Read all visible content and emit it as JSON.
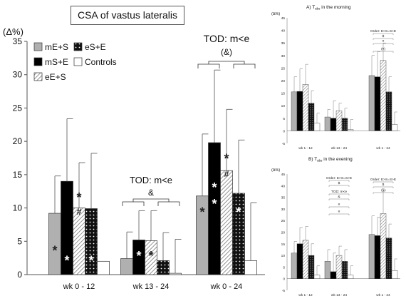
{
  "chart_data": [
    {
      "type": "bar",
      "title": "CSA of vastus lateralis",
      "ylabel": "(Δ%)",
      "ylim": [
        0,
        35
      ],
      "yticks": [
        0,
        5,
        10,
        15,
        20,
        25,
        30,
        35
      ],
      "categories": [
        "wk 0 - 12",
        "wk 13 - 24",
        "wk 0 - 24"
      ],
      "series": [
        {
          "name": "mE+S",
          "color": "#b0b0b0",
          "pattern": "solid",
          "values": [
            9.2,
            2.4,
            11.8
          ],
          "errors": [
            5.6,
            4.0,
            9.3
          ]
        },
        {
          "name": "eS+E",
          "color": "#111111",
          "pattern": "dots",
          "values": [
            9.9,
            2.1,
            12.2
          ],
          "errors": [
            8.3,
            4.2,
            8.0
          ]
        },
        {
          "name": "mS+E",
          "color": "#000000",
          "pattern": "solid",
          "values": [
            14.0,
            5.2,
            19.8
          ],
          "errors": [
            9.4,
            4.4,
            10.9
          ]
        },
        {
          "name": "eE+S",
          "color": "#ffffff",
          "pattern": "diagonal",
          "values": [
            10.0,
            5.1,
            15.6
          ],
          "errors": [
            6.8,
            4.5,
            9.2
          ]
        },
        {
          "name": "Controls",
          "color": "#ffffff",
          "pattern": "solid",
          "values": [
            2.0,
            0.2,
            2.1
          ],
          "errors": [
            0,
            5.1,
            8.7
          ]
        }
      ],
      "legend_layout": [
        [
          "mE+S",
          "eS+E"
        ],
        [
          "mS+E",
          "Controls"
        ],
        [
          "eE+S"
        ]
      ],
      "legend": "top-left",
      "markers": [
        {
          "category": 0,
          "series": 0,
          "symbol": "*",
          "at": 4.0
        },
        {
          "category": 0,
          "series": 1,
          "symbol": "*",
          "at": 2.5
        },
        {
          "category": 0,
          "series": 3,
          "symbol": "*",
          "at": 12.0
        },
        {
          "category": 0,
          "series": 3,
          "symbol": "#",
          "at": 9.5
        },
        {
          "category": 0,
          "series": 2,
          "symbol": "*",
          "at": 2.5
        },
        {
          "category": 1,
          "series": 3,
          "symbol": "*",
          "at": 3.2
        },
        {
          "category": 1,
          "series": 2,
          "symbol": "*",
          "at": 3.2
        },
        {
          "category": 2,
          "series": 0,
          "symbol": "*",
          "at": 9.8
        },
        {
          "category": 2,
          "series": 1,
          "symbol": "*",
          "at": 9.8
        },
        {
          "category": 2,
          "series": 3,
          "symbol": "*",
          "at": 17.8
        },
        {
          "category": 2,
          "series": 3,
          "symbol": "#",
          "at": 15.2
        },
        {
          "category": 2,
          "series": 2,
          "symbol": "*",
          "at": 13.5
        },
        {
          "category": 2,
          "series": 2,
          "symbol": "*",
          "at": 11.0
        }
      ],
      "annotations": [
        {
          "category": 1,
          "text": "TOD: m<e",
          "symbol": "&"
        },
        {
          "category": 2,
          "text": "TOD: m<e",
          "symbol": "(&)"
        }
      ]
    },
    {
      "type": "bar",
      "title": "A) T",
      "title_subscript": "abs",
      "title_suffix": " in the morning",
      "ylabel": "(Δ%)",
      "ylim": [
        -5,
        45
      ],
      "yticks": [
        -5,
        0,
        5,
        10,
        15,
        20,
        25,
        30,
        35,
        40,
        45
      ],
      "categories": [
        "wk 1 - 12",
        "wk 13 - 24",
        "wk 1 - 24"
      ],
      "values": [
        [
          15.5,
          15.7,
          18.5,
          11.0,
          3.0
        ],
        [
          5.5,
          5.0,
          8.0,
          5.0,
          0.5
        ],
        [
          22.0,
          21.5,
          28.0,
          15.5,
          2.5
        ]
      ],
      "errors": [
        [
          6,
          9,
          8,
          5,
          4
        ],
        [
          3,
          7,
          3,
          4,
          4
        ],
        [
          8,
          10,
          7,
          6,
          5
        ]
      ],
      "annotations": [
        {
          "category": 2,
          "text": "Order: E>S=S>E"
        },
        {
          "category": 2,
          "text": "$"
        },
        {
          "category": 2,
          "text": "#"
        },
        {
          "category": 2,
          "text": "(#)"
        }
      ]
    },
    {
      "type": "bar",
      "title": "B) T",
      "title_subscript": "abs",
      "title_suffix": " in the evening",
      "ylabel": "(Δ%)",
      "ylim": [
        -5,
        45
      ],
      "yticks": [
        -5,
        0,
        5,
        10,
        15,
        20,
        25,
        30,
        35,
        40,
        45
      ],
      "categories": [
        "wk 1 - 12",
        "wk 13 - 24",
        "wk 1 - 24"
      ],
      "values": [
        [
          11.0,
          15.0,
          16.5,
          10.0,
          1.5
        ],
        [
          7.5,
          3.0,
          10.0,
          7.5,
          1.5
        ],
        [
          19.0,
          18.5,
          28.0,
          17.5,
          3.5
        ]
      ],
      "errors": [
        [
          5,
          7,
          6,
          5,
          4
        ],
        [
          5,
          8,
          4,
          5,
          4
        ],
        [
          8,
          8,
          10,
          6,
          5
        ]
      ],
      "annotations": [
        {
          "category": 1,
          "text": "Order: E>S=S>E"
        },
        {
          "category": 1,
          "text": "$"
        },
        {
          "category": 1,
          "text": "TOD: m<e"
        },
        {
          "category": 1,
          "text": "&"
        },
        {
          "category": 1,
          "text": "#"
        },
        {
          "category": 1,
          "text": "#"
        },
        {
          "category": 2,
          "text": "Order: E>S=S>E"
        },
        {
          "category": 2,
          "text": "$"
        },
        {
          "category": 2,
          "text": "(§)"
        }
      ]
    }
  ]
}
